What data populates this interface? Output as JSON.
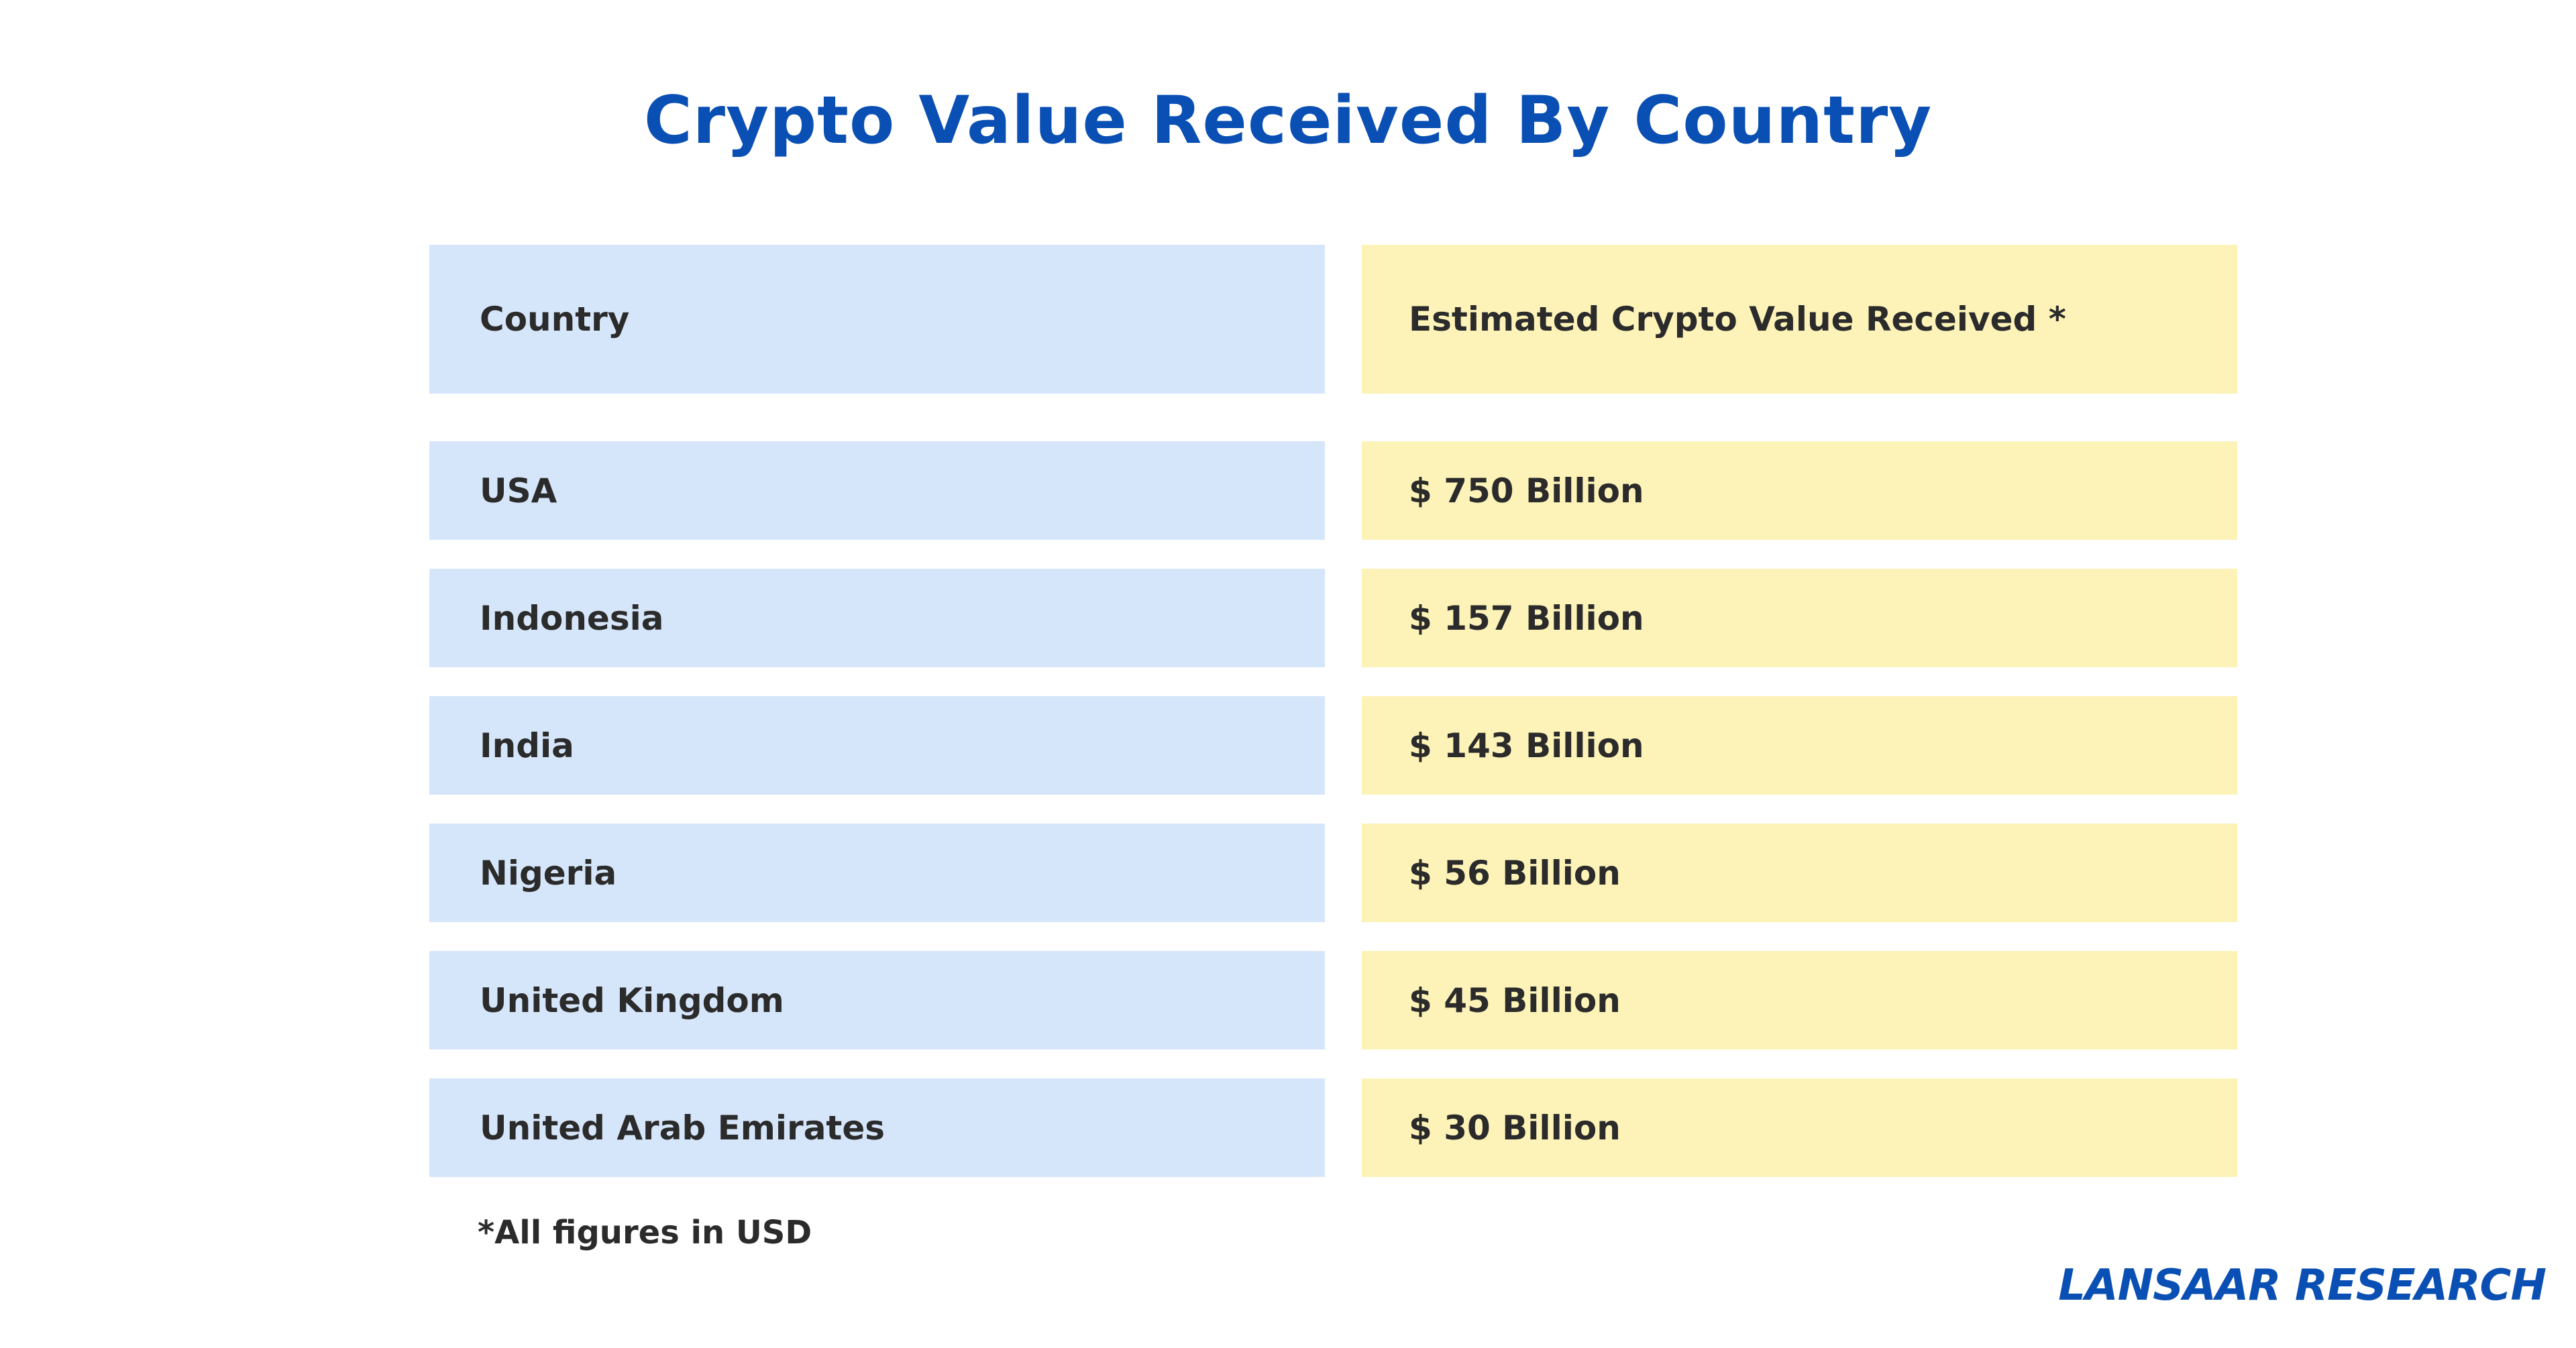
{
  "chart_data": {
    "type": "table",
    "title": "Crypto Value Received By Country",
    "columns": [
      "Country",
      "Estimated Crypto Value Received *"
    ],
    "rows": [
      {
        "country": "USA",
        "value": "$ 750 Billion",
        "value_billion_usd": 750
      },
      {
        "country": "Indonesia",
        "value": "$ 157 Billion",
        "value_billion_usd": 157
      },
      {
        "country": "India",
        "value": "$ 143 Billion",
        "value_billion_usd": 143
      },
      {
        "country": "Nigeria",
        "value": "$ 56 Billion",
        "value_billion_usd": 56
      },
      {
        "country": "United Kingdom",
        "value": "$ 45 Billion",
        "value_billion_usd": 45
      },
      {
        "country": "United Arab Emirates",
        "value": "$ 30 Billion",
        "value_billion_usd": 30
      }
    ],
    "footnote": "*All figures in USD",
    "source_brand": "LANSAAR RESEARCH"
  },
  "colors": {
    "title": "#0a4fb3",
    "country_column_bg": "#d6e6fa",
    "value_column_bg": "#fdf3b8",
    "text": "#2b2b2b",
    "brand": "#0a4fb3"
  }
}
